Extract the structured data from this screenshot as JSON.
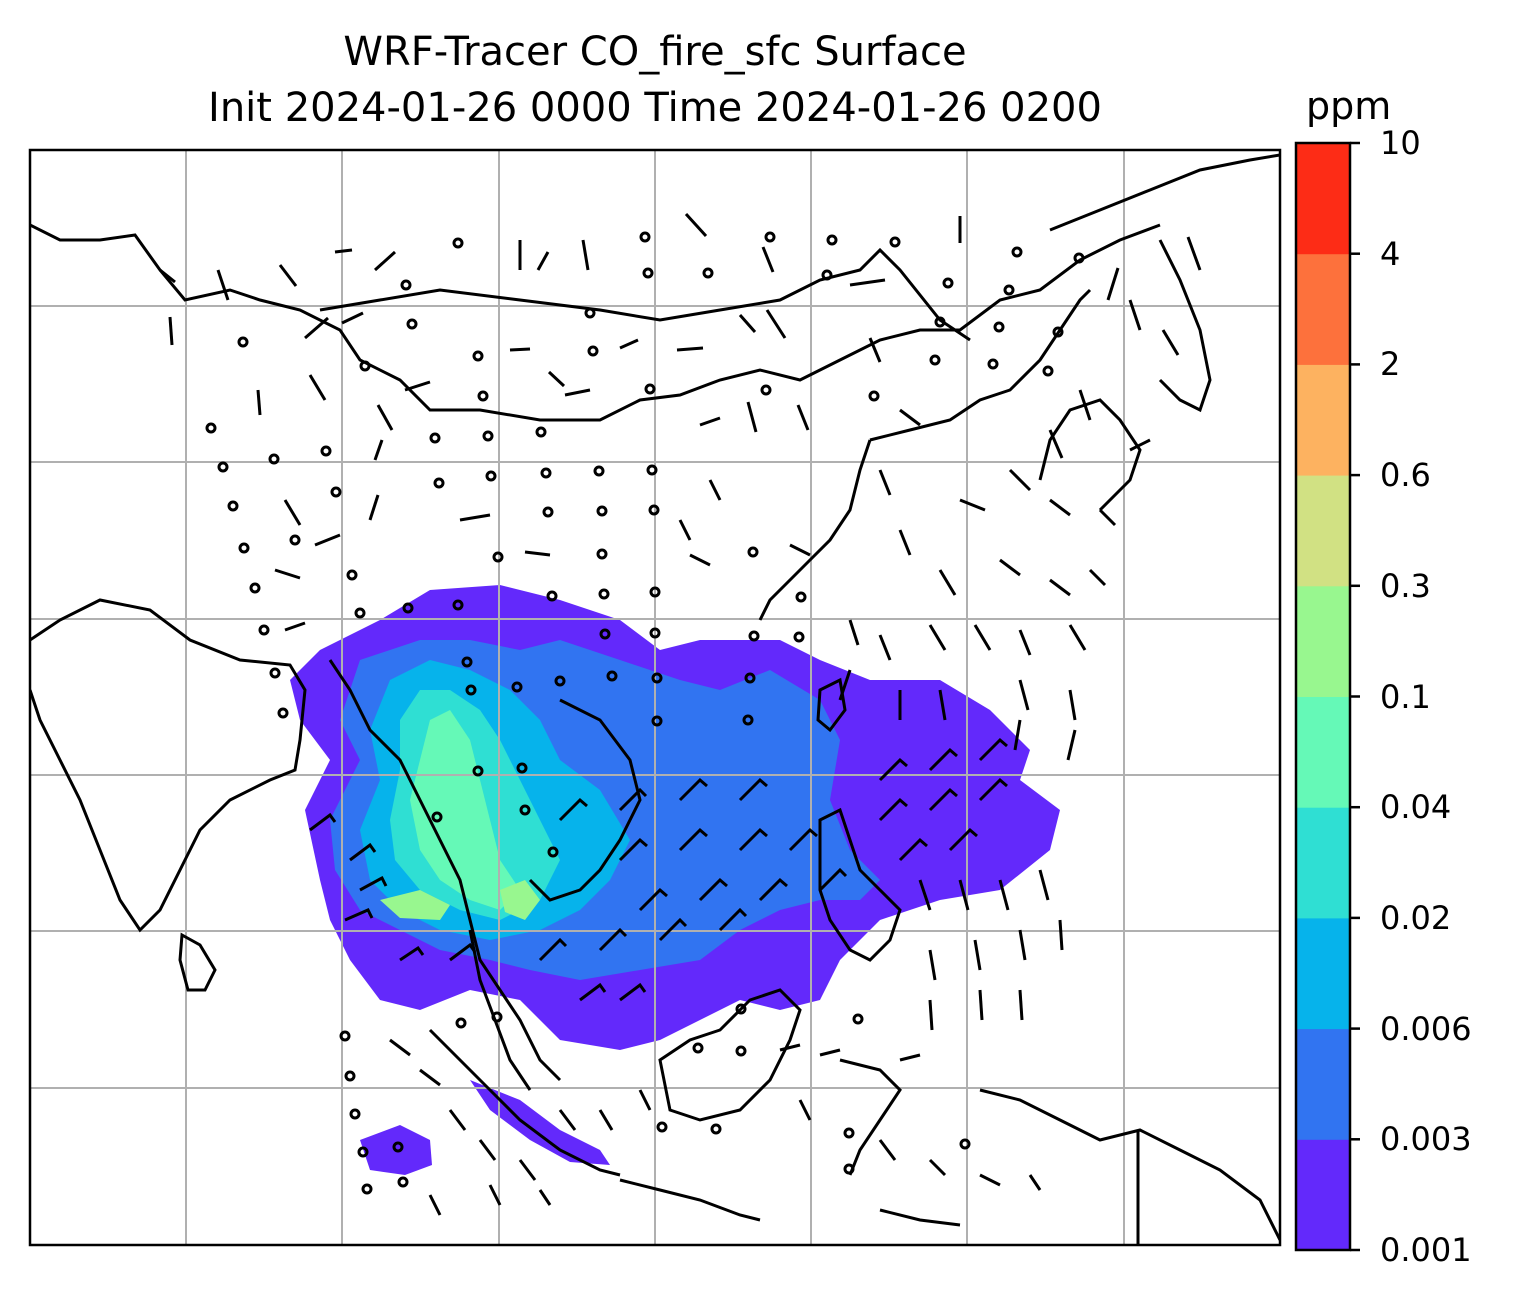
{
  "title": {
    "line1": "WRF-Tracer CO_fire_sfc Surface",
    "line2": "Init 2024-01-26 0000 Time 2024-01-26 0200"
  },
  "colorbar": {
    "unit": "ppm",
    "levels": [
      "0.001",
      "0.003",
      "0.006",
      "0.02",
      "0.04",
      "0.1",
      "0.3",
      "0.6",
      "2",
      "4",
      "10"
    ],
    "colors": [
      "#6329fb",
      "#3174f1",
      "#06b3eb",
      "#2fdfd3",
      "#65f9b7",
      "#98f78f",
      "#d1e183",
      "#fdb260",
      "#fd713c",
      "#fd2c16"
    ]
  },
  "map": {
    "grid": "on",
    "features": [
      "coastlines",
      "country-borders",
      "gridlines",
      "filled-contours",
      "wind-barbs"
    ]
  }
}
